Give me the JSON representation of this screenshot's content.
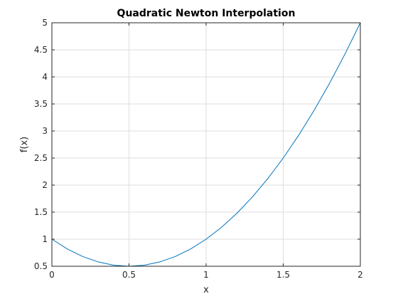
{
  "chart_data": {
    "type": "line",
    "title": "Quadratic Newton Interpolation",
    "xlabel": "x",
    "ylabel": "f(x)",
    "xlim": [
      0,
      2
    ],
    "ylim": [
      0.5,
      5
    ],
    "grid": true,
    "xticks": [
      0,
      0.5,
      1,
      1.5,
      2
    ],
    "xtick_labels": [
      "0",
      "0.5",
      "1",
      "1.5",
      "2"
    ],
    "yticks": [
      0.5,
      1,
      1.5,
      2,
      2.5,
      3,
      3.5,
      4,
      4.5,
      5
    ],
    "ytick_labels": [
      "0.5",
      "1",
      "1.5",
      "2",
      "2.5",
      "3",
      "3.5",
      "4",
      "4.5",
      "5"
    ],
    "series": [
      {
        "color": "#0072bd",
        "x": [
          0,
          0.1,
          0.2,
          0.3,
          0.4,
          0.5,
          0.6,
          0.7,
          0.8,
          0.9,
          1.0,
          1.1,
          1.2,
          1.3,
          1.4,
          1.5,
          1.6,
          1.7,
          1.8,
          1.9,
          2.0
        ],
        "y": [
          1.0,
          0.82,
          0.68,
          0.58,
          0.52,
          0.5,
          0.52,
          0.58,
          0.68,
          0.82,
          1.0,
          1.22,
          1.48,
          1.78,
          2.12,
          2.5,
          2.92,
          3.38,
          3.88,
          4.42,
          5.0
        ]
      }
    ]
  }
}
